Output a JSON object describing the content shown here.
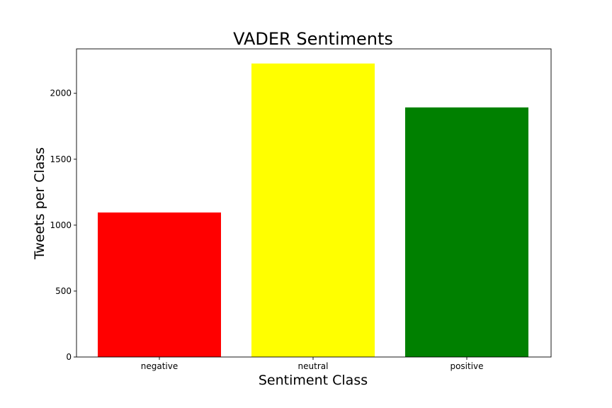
{
  "chart_data": {
    "type": "bar",
    "title": "VADER Sentiments",
    "xlabel": "Sentiment Class",
    "ylabel": "Tweets per Class",
    "categories": [
      "negative",
      "neutral",
      "positive"
    ],
    "values": [
      1096,
      2226,
      1893
    ],
    "colors": [
      "#ff0000",
      "#ffff00",
      "#008000"
    ],
    "ylim": [
      0,
      2337
    ],
    "yticks": [
      0,
      500,
      1000,
      1500,
      2000
    ],
    "grid": false
  }
}
